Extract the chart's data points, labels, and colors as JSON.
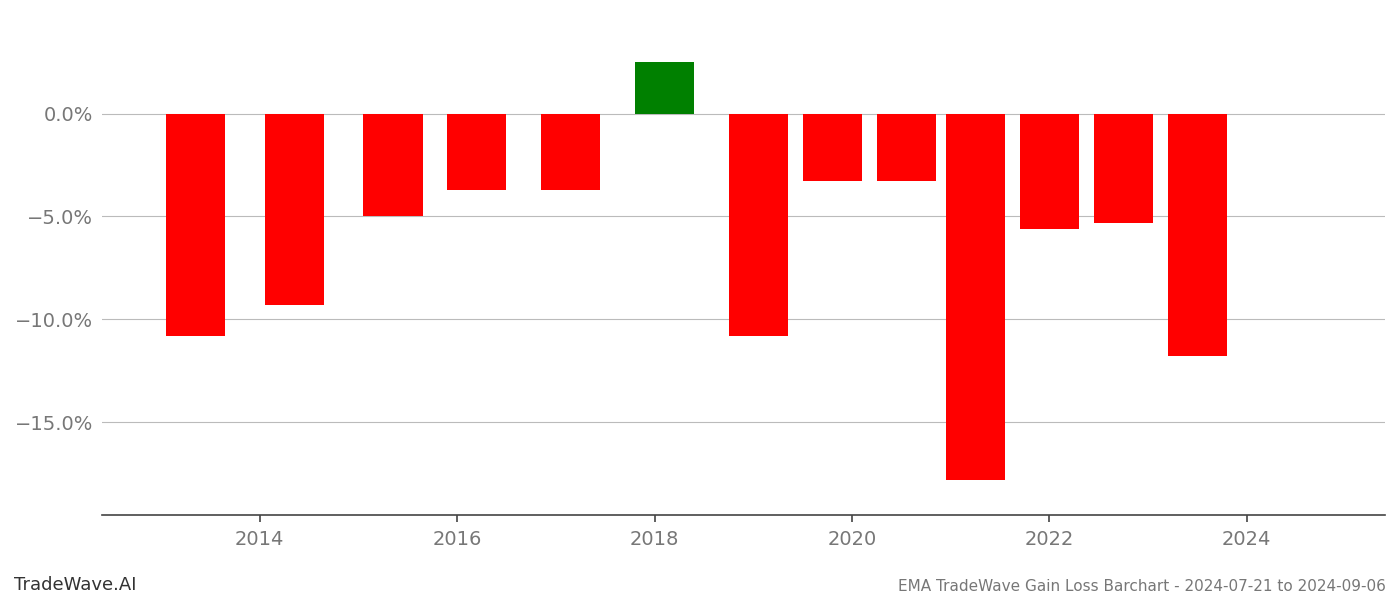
{
  "x_positions": [
    2013.35,
    2014.35,
    2015.35,
    2016.2,
    2017.15,
    2018.1,
    2019.05,
    2019.8,
    2020.55,
    2021.25,
    2022.0,
    2022.75,
    2023.5
  ],
  "values": [
    -10.8,
    -9.3,
    -5.0,
    -3.7,
    -3.7,
    2.5,
    -10.8,
    -3.3,
    -3.3,
    -17.8,
    -5.6,
    -5.3,
    -11.8
  ],
  "colors": [
    "#ff0000",
    "#ff0000",
    "#ff0000",
    "#ff0000",
    "#ff0000",
    "#008000",
    "#ff0000",
    "#ff0000",
    "#ff0000",
    "#ff0000",
    "#ff0000",
    "#ff0000",
    "#ff0000"
  ],
  "bar_width": 0.6,
  "ylim": [
    -19.5,
    4.5
  ],
  "ytick_vals": [
    0.0,
    -5.0,
    -10.0,
    -15.0
  ],
  "ytick_labels": [
    "0.0%",
    "−5.0%",
    "−10.0%",
    "−15.0%"
  ],
  "xticks": [
    2014,
    2016,
    2018,
    2020,
    2022,
    2024
  ],
  "xlim": [
    2012.4,
    2025.4
  ],
  "footer_left": "TradeWave.AI",
  "footer_right": "EMA TradeWave Gain Loss Barchart - 2024-07-21 to 2024-09-06",
  "background_color": "#ffffff",
  "grid_color": "#bbbbbb",
  "axis_color": "#444444",
  "text_color": "#777777"
}
